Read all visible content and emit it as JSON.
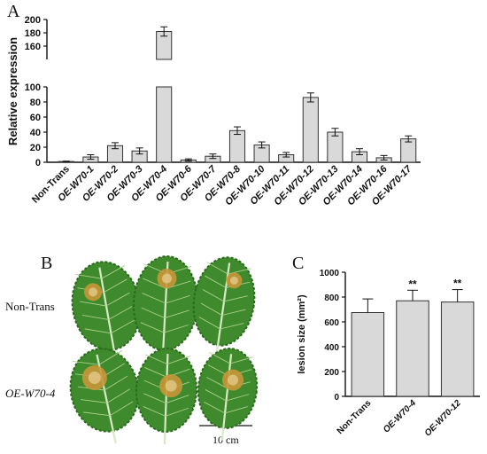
{
  "panels": {
    "a": "A",
    "b": "B",
    "c": "C"
  },
  "chart_data": [
    {
      "type": "bar",
      "panel": "A",
      "ylabel": "Relative expression",
      "y_broken_axis": {
        "lower_range": [
          0,
          100
        ],
        "upper_range": [
          140,
          200
        ]
      },
      "y_ticks_lower": [
        0,
        20,
        40,
        60,
        80,
        100
      ],
      "y_ticks_upper": [
        160,
        180,
        200
      ],
      "categories": [
        "Non-Trans",
        "OE-W70-1",
        "OE-W70-2",
        "OE-W70-3",
        "OE-W70-4",
        "OE-W70-6",
        "OE-W70-7",
        "OE-W70-8",
        "OE-W70-10",
        "OE-W70-11",
        "OE-W70-12",
        "OE-W70-13",
        "OE-W70-14",
        "OE-W70-16",
        "OE-W70-17"
      ],
      "category_italic": [
        false,
        true,
        true,
        true,
        true,
        true,
        true,
        true,
        true,
        true,
        true,
        true,
        true,
        true,
        true
      ],
      "values": [
        1,
        7,
        22,
        15,
        182,
        3,
        8,
        42,
        23,
        10,
        86,
        40,
        14,
        6,
        31
      ],
      "errors": [
        0.5,
        3,
        4,
        4,
        7,
        1.5,
        3,
        5,
        4,
        3,
        6,
        5,
        4,
        3,
        4
      ],
      "bar_color": "#d9d9d9",
      "grid": false
    },
    {
      "type": "bar",
      "panel": "C",
      "ylabel": "lesion size (mm²)",
      "ylim": [
        0,
        1000
      ],
      "y_ticks": [
        0,
        200,
        400,
        600,
        800,
        1000
      ],
      "categories": [
        "Non-Trans",
        "OE-W70-4",
        "OE-W70-12"
      ],
      "category_italic": [
        false,
        true,
        true
      ],
      "values": [
        675,
        770,
        760
      ],
      "errors": [
        110,
        85,
        100
      ],
      "significance": [
        "",
        "**",
        "**"
      ],
      "bar_color": "#d9d9d9",
      "grid": false
    }
  ],
  "photo": {
    "row_labels": [
      "Non-Trans",
      "OE-W70-4"
    ],
    "scale_bar_label": "10 cm",
    "leaf_color": "#3f8a2c",
    "lesion_color": "#c8963a"
  }
}
